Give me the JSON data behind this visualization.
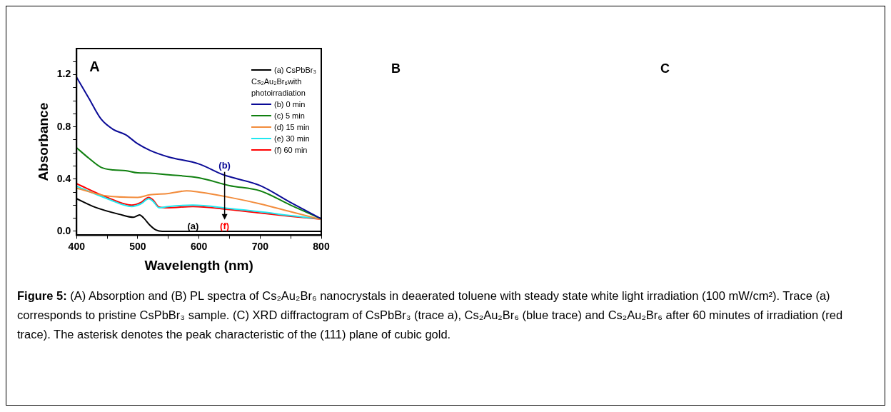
{
  "chart_data": {
    "type": "line",
    "xlabel": "Wavelength (nm)",
    "ylabel": "Absorbance",
    "xlim": [
      400,
      800
    ],
    "xticks": [
      400,
      {
        "value": 450,
        "label": null
      },
      500,
      {
        "value": 550,
        "label": null
      },
      600,
      {
        "value": 650,
        "label": null
      },
      700,
      {
        "value": 750,
        "label": null
      },
      800
    ],
    "ylim": [
      -0.03,
      1.4
    ],
    "yticks": [
      {
        "value": 0,
        "label": "0.0"
      },
      {
        "value": 0.1,
        "label": null
      },
      {
        "value": 0.2,
        "label": null
      },
      {
        "value": 0.3,
        "label": null
      },
      0.4,
      {
        "value": 0.5,
        "label": null
      },
      {
        "value": 0.6,
        "label": null
      },
      {
        "value": 0.7,
        "label": null
      },
      0.8,
      {
        "value": 0.9,
        "label": null
      },
      {
        "value": 1.0,
        "label": null
      },
      {
        "value": 1.1,
        "label": null
      },
      1.2,
      {
        "value": 1.3,
        "label": null
      }
    ],
    "legend": "top right",
    "legend_title": "Cs₂Au₂Br₆with photoirradiation",
    "grid": false,
    "marker": "none",
    "line_style": "solid",
    "series": [
      {
        "name": "(a) CsPbBr₃",
        "color": "#000000",
        "x": [
          400,
          430,
          470,
          493,
          503,
          510,
          520,
          530,
          540,
          600,
          700,
          800
        ],
        "values": [
          0.25,
          0.185,
          0.13,
          0.107,
          0.125,
          0.1,
          0.046,
          0.01,
          0.0,
          0.0,
          0.0,
          0.0
        ]
      },
      {
        "name": "(b) 0 min",
        "color": "#0a0a96",
        "x": [
          400,
          420,
          440,
          460,
          480,
          500,
          520,
          550,
          600,
          640,
          700,
          750,
          800
        ],
        "values": [
          1.18,
          1.02,
          0.86,
          0.78,
          0.74,
          0.67,
          0.62,
          0.57,
          0.516,
          0.433,
          0.35,
          0.22,
          0.096
        ]
      },
      {
        "name": "(c) 5 min",
        "color": "#108010",
        "x": [
          400,
          420,
          440,
          460,
          480,
          500,
          520,
          550,
          600,
          650,
          700,
          750,
          800
        ],
        "values": [
          0.64,
          0.56,
          0.49,
          0.47,
          0.465,
          0.448,
          0.446,
          0.433,
          0.41,
          0.35,
          0.31,
          0.2,
          0.096
        ]
      },
      {
        "name": "(d) 15 min",
        "color": "#f28c3c",
        "x": [
          400,
          450,
          500,
          520,
          550,
          580,
          600,
          650,
          700,
          750,
          800
        ],
        "values": [
          0.33,
          0.27,
          0.26,
          0.28,
          0.29,
          0.31,
          0.3,
          0.26,
          0.21,
          0.15,
          0.09
        ]
      },
      {
        "name": "(e) 30 min",
        "color": "#20e8f0",
        "x": [
          400,
          450,
          490,
          505,
          518,
          525,
          535,
          550,
          590,
          650,
          700,
          750,
          800
        ],
        "values": [
          0.345,
          0.25,
          0.19,
          0.21,
          0.25,
          0.23,
          0.18,
          0.19,
          0.2,
          0.175,
          0.15,
          0.12,
          0.095
        ]
      },
      {
        "name": "(f) 60 min",
        "color": "#ff0000",
        "x": [
          400,
          450,
          490,
          505,
          518,
          525,
          535,
          550,
          590,
          650,
          700,
          750,
          800
        ],
        "values": [
          0.365,
          0.26,
          0.2,
          0.22,
          0.26,
          0.24,
          0.185,
          0.18,
          0.19,
          0.166,
          0.14,
          0.115,
          0.092
        ]
      }
    ],
    "annotations": [
      "(b)",
      "(f)",
      "(a)",
      "A",
      "B",
      "C",
      "Figure 5: (A) Absorption and (B) PL spectra of Cs₂Au₂Br₆ nanocrystals in deaerated toluene with steady state white light irradiation (100 mW/cm²). Trace (a) corresponds to pristine CsPbBr₃ sample. (C) XRD diffractogram of CsPbBr₃ (trace a), Cs₂Au₂Br₆ (blue trace) and Cs₂Au₂Br₆ after 60 minutes of irradiation (red trace). The asterisk denotes the peak characteristic of the (111) plane of cubic gold."
    ]
  }
}
